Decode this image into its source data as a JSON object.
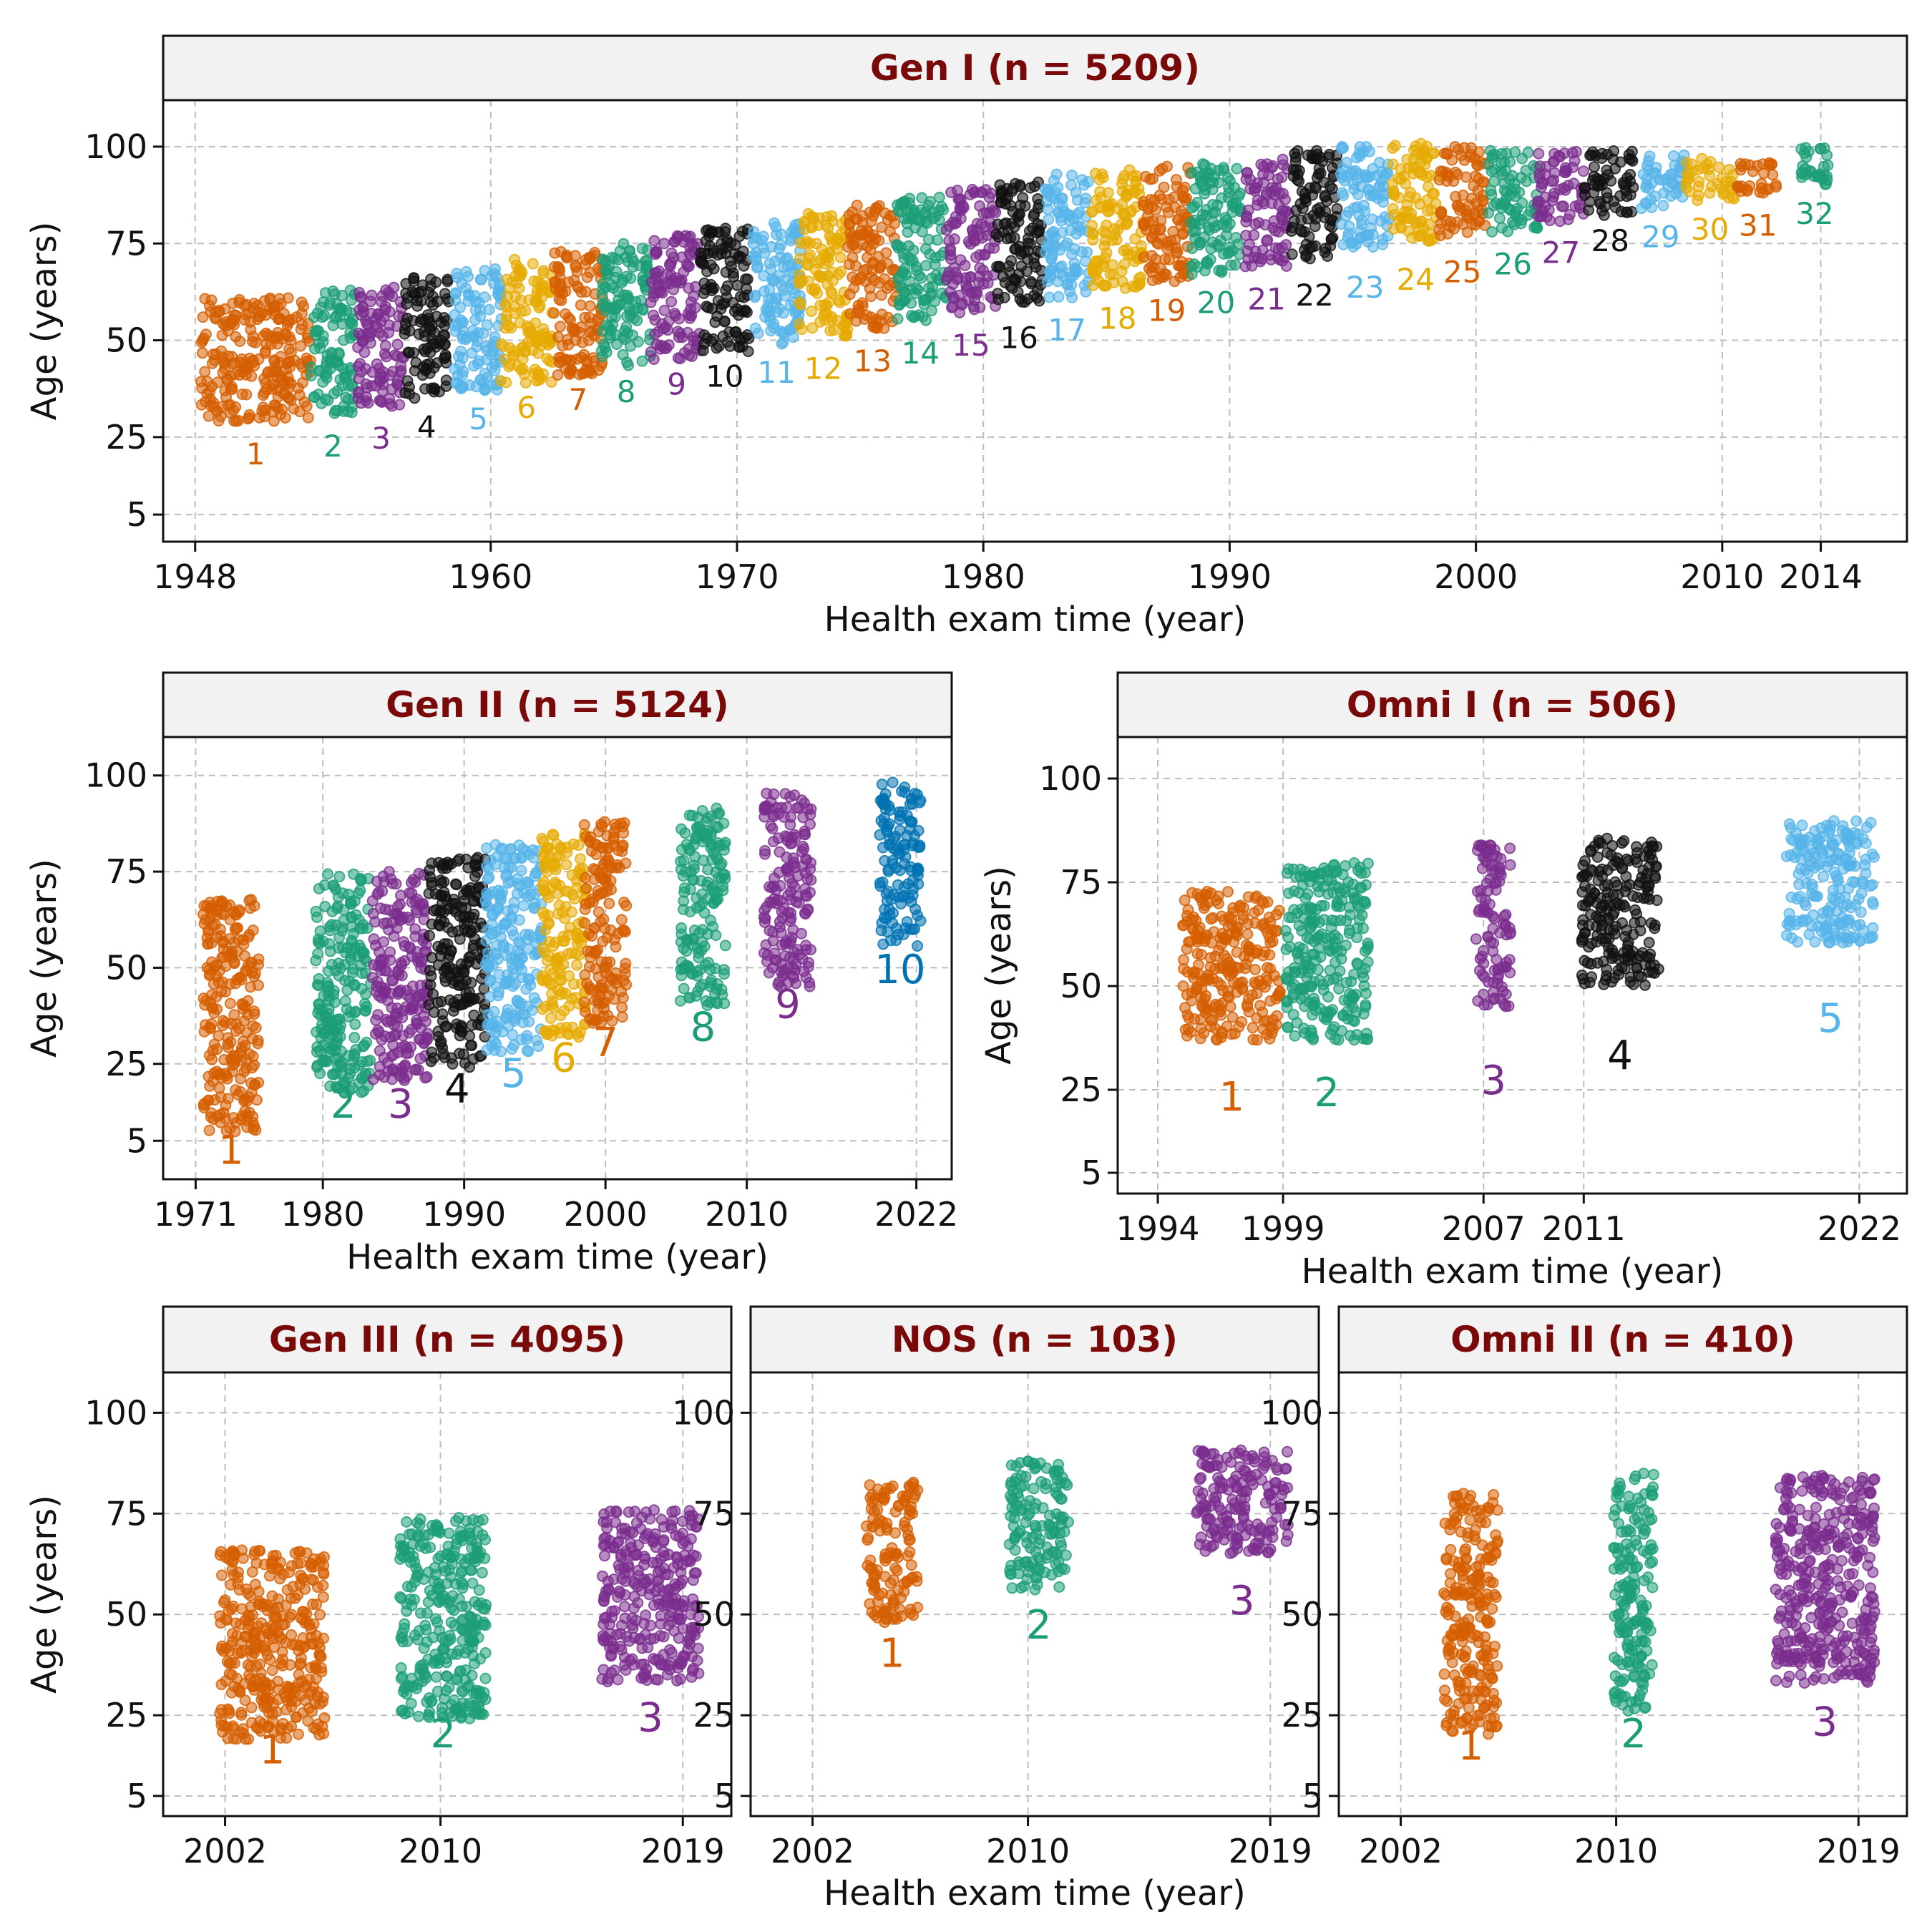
{
  "figure": {
    "xlabel": "Health exam time (year)",
    "ylabel": "Age (years)",
    "palette": {
      "orange": "#D55E00",
      "green": "#1B9E77",
      "purple": "#7B2D8E",
      "black": "#111111",
      "skyblue": "#56B4E9",
      "gold": "#E6AB02",
      "blue": "#0072B2"
    },
    "strip_fill": "#F2F2F2",
    "strip_text_color": "#7A0A0A",
    "grid": "dashed",
    "point_style": "jittered semi-transparent circles"
  },
  "chart_data": [
    {
      "id": "gen1",
      "type": "scatter",
      "title": "Gen I (n = 5209)",
      "xlabel": "Health exam time (year)",
      "ylabel": "Age (years)",
      "xlim": [
        1946.7,
        2017.5
      ],
      "ylim": [
        -2,
        112
      ],
      "xticks": [
        1948,
        1960,
        1970,
        1980,
        1990,
        2000,
        2010,
        2014
      ],
      "yticks": [
        5,
        25,
        50,
        75,
        100
      ],
      "exams": [
        {
          "label": "1",
          "start": 1948.2,
          "end": 1952.7,
          "min": 29,
          "max": 61,
          "color": "orange",
          "label_y": 18
        },
        {
          "label": "2",
          "start": 1952.7,
          "end": 1954.5,
          "min": 31,
          "max": 63,
          "color": "green",
          "label_y": 20
        },
        {
          "label": "3",
          "start": 1954.6,
          "end": 1956.5,
          "min": 33,
          "max": 65,
          "color": "purple",
          "label_y": 22
        },
        {
          "label": "4",
          "start": 1956.5,
          "end": 1958.3,
          "min": 35,
          "max": 67,
          "color": "black",
          "label_y": 25
        },
        {
          "label": "5",
          "start": 1958.5,
          "end": 1960.5,
          "min": 37,
          "max": 69,
          "color": "skyblue",
          "label_y": 27
        },
        {
          "label": "6",
          "start": 1960.4,
          "end": 1962.5,
          "min": 39,
          "max": 71,
          "color": "gold",
          "label_y": 30
        },
        {
          "label": "7",
          "start": 1962.5,
          "end": 1964.6,
          "min": 41,
          "max": 73,
          "color": "orange",
          "label_y": 32
        },
        {
          "label": "8",
          "start": 1964.5,
          "end": 1966.5,
          "min": 43,
          "max": 75,
          "color": "green",
          "label_y": 34
        },
        {
          "label": "9",
          "start": 1966.5,
          "end": 1968.6,
          "min": 45,
          "max": 77,
          "color": "purple",
          "label_y": 36
        },
        {
          "label": "10",
          "start": 1968.5,
          "end": 1970.5,
          "min": 47,
          "max": 79,
          "color": "black",
          "label_y": 38
        },
        {
          "label": "11",
          "start": 1970.6,
          "end": 1972.6,
          "min": 49,
          "max": 81,
          "color": "skyblue",
          "label_y": 39
        },
        {
          "label": "12",
          "start": 1972.5,
          "end": 1974.5,
          "min": 51,
          "max": 83,
          "color": "gold",
          "label_y": 40
        },
        {
          "label": "13",
          "start": 1974.5,
          "end": 1976.5,
          "min": 53,
          "max": 85,
          "color": "orange",
          "label_y": 42
        },
        {
          "label": "14",
          "start": 1976.4,
          "end": 1978.5,
          "min": 55,
          "max": 87,
          "color": "green",
          "label_y": 44
        },
        {
          "label": "15",
          "start": 1978.5,
          "end": 1980.5,
          "min": 57,
          "max": 89,
          "color": "purple",
          "label_y": 46
        },
        {
          "label": "16",
          "start": 1980.5,
          "end": 1982.4,
          "min": 59,
          "max": 91,
          "color": "black",
          "label_y": 48
        },
        {
          "label": "17",
          "start": 1982.5,
          "end": 1984.3,
          "min": 61,
          "max": 93,
          "color": "skyblue",
          "label_y": 50
        },
        {
          "label": "18",
          "start": 1984.4,
          "end": 1986.5,
          "min": 63,
          "max": 94,
          "color": "gold",
          "label_y": 53
        },
        {
          "label": "19",
          "start": 1986.5,
          "end": 1988.4,
          "min": 65,
          "max": 95,
          "color": "orange",
          "label_y": 55
        },
        {
          "label": "20",
          "start": 1988.4,
          "end": 1990.5,
          "min": 67,
          "max": 96,
          "color": "green",
          "label_y": 57
        },
        {
          "label": "21",
          "start": 1990.6,
          "end": 1992.4,
          "min": 69,
          "max": 97,
          "color": "purple",
          "label_y": 58
        },
        {
          "label": "22",
          "start": 1992.5,
          "end": 1994.4,
          "min": 71,
          "max": 99,
          "color": "black",
          "label_y": 59
        },
        {
          "label": "23",
          "start": 1994.5,
          "end": 1996.5,
          "min": 74,
          "max": 100,
          "color": "skyblue",
          "label_y": 61
        },
        {
          "label": "24",
          "start": 1996.6,
          "end": 1998.5,
          "min": 75,
          "max": 101,
          "color": "gold",
          "label_y": 63
        },
        {
          "label": "25",
          "start": 1998.5,
          "end": 2000.4,
          "min": 77,
          "max": 100,
          "color": "orange",
          "label_y": 65
        },
        {
          "label": "26",
          "start": 2000.5,
          "end": 2002.5,
          "min": 78,
          "max": 99,
          "color": "green",
          "label_y": 67
        },
        {
          "label": "27",
          "start": 2002.5,
          "end": 2004.4,
          "min": 80,
          "max": 99,
          "color": "purple",
          "label_y": 70
        },
        {
          "label": "28",
          "start": 2004.4,
          "end": 2006.5,
          "min": 82,
          "max": 99,
          "color": "black",
          "label_y": 73
        },
        {
          "label": "29",
          "start": 2006.5,
          "end": 2008.5,
          "min": 84,
          "max": 98,
          "color": "skyblue",
          "label_y": 74
        },
        {
          "label": "30",
          "start": 2008.5,
          "end": 2010.5,
          "min": 86,
          "max": 97,
          "color": "gold",
          "label_y": 76
        },
        {
          "label": "31",
          "start": 2010.6,
          "end": 2012.3,
          "min": 88,
          "max": 96,
          "color": "orange",
          "label_y": 77
        },
        {
          "label": "32",
          "start": 2013.2,
          "end": 2014.3,
          "min": 90,
          "max": 100,
          "color": "green",
          "label_y": 80
        }
      ]
    },
    {
      "id": "gen2",
      "type": "scatter",
      "title": "Gen II (n = 5124)",
      "xlabel": "Health exam time (year)",
      "ylabel": "Age (years)",
      "xlim": [
        1968.7,
        2024.5
      ],
      "ylim": [
        -5,
        110
      ],
      "xticks": [
        1971,
        1980,
        1990,
        2000,
        2010,
        2022
      ],
      "yticks": [
        5,
        25,
        50,
        75,
        100
      ],
      "exams": [
        {
          "label": "1",
          "start": 1971.5,
          "end": 1975.5,
          "min": 7,
          "max": 68,
          "color": "orange",
          "label_y": -1
        },
        {
          "label": "2",
          "start": 1979.5,
          "end": 1983.4,
          "min": 17,
          "max": 75,
          "color": "green",
          "label_y": 11
        },
        {
          "label": "3",
          "start": 1983.5,
          "end": 1987.5,
          "min": 20,
          "max": 75,
          "color": "purple",
          "label_y": 11
        },
        {
          "label": "4",
          "start": 1987.5,
          "end": 1991.5,
          "min": 24,
          "max": 79,
          "color": "black",
          "label_y": 15
        },
        {
          "label": "5",
          "start": 1991.5,
          "end": 1995.5,
          "min": 28,
          "max": 82,
          "color": "skyblue",
          "label_y": 19
        },
        {
          "label": "6",
          "start": 1995.5,
          "end": 1998.6,
          "min": 32,
          "max": 85,
          "color": "gold",
          "label_y": 23
        },
        {
          "label": "7",
          "start": 1998.5,
          "end": 2001.5,
          "min": 35,
          "max": 88,
          "color": "orange",
          "label_y": 27
        },
        {
          "label": "8",
          "start": 2005.3,
          "end": 2008.5,
          "min": 40,
          "max": 92,
          "color": "green",
          "label_y": 31
        },
        {
          "label": "9",
          "start": 2011.2,
          "end": 2014.6,
          "min": 45,
          "max": 96,
          "color": "purple",
          "label_y": 37
        },
        {
          "label": "10",
          "start": 2019.4,
          "end": 2022.3,
          "min": 55,
          "max": 100,
          "color": "blue",
          "label_y": 46
        }
      ]
    },
    {
      "id": "omni1",
      "type": "scatter",
      "title": "Omni I (n = 506)",
      "xlabel": "Health exam time (year)",
      "ylabel": "Age (years)",
      "xlim": [
        1992.4,
        2023.9
      ],
      "ylim": [
        0,
        110
      ],
      "xticks": [
        1994,
        1999,
        2007,
        2011,
        2022
      ],
      "yticks": [
        5,
        25,
        50,
        75,
        100
      ],
      "exams": [
        {
          "label": "1",
          "start": 1995.0,
          "end": 1998.9,
          "min": 37,
          "max": 73,
          "color": "orange",
          "label_y": 20
        },
        {
          "label": "2",
          "start": 1999.1,
          "end": 2002.4,
          "min": 37,
          "max": 80,
          "color": "green",
          "label_y": 21
        },
        {
          "label": "3",
          "start": 2006.7,
          "end": 2008.1,
          "min": 45,
          "max": 85,
          "color": "purple",
          "label_y": 24
        },
        {
          "label": "4",
          "start": 2010.9,
          "end": 2014.0,
          "min": 50,
          "max": 86,
          "color": "black",
          "label_y": 30
        },
        {
          "label": "5",
          "start": 2019.1,
          "end": 2022.6,
          "min": 60,
          "max": 90,
          "color": "skyblue",
          "label_y": 39
        }
      ]
    },
    {
      "id": "gen3",
      "type": "scatter",
      "title": "Gen III (n = 4095)",
      "xlabel": "Health exam time (year)",
      "ylabel": "Age (years)",
      "xlim": [
        1999.7,
        2020.8
      ],
      "ylim": [
        0,
        110
      ],
      "xticks": [
        2002,
        2010,
        2019
      ],
      "yticks": [
        5,
        25,
        50,
        75,
        100
      ],
      "exams": [
        {
          "label": "1",
          "start": 2001.8,
          "end": 2005.7,
          "min": 19,
          "max": 66,
          "color": "orange",
          "label_y": 13
        },
        {
          "label": "2",
          "start": 2008.5,
          "end": 2011.7,
          "min": 24,
          "max": 74,
          "color": "green",
          "label_y": 17
        },
        {
          "label": "3",
          "start": 2016.0,
          "end": 2019.6,
          "min": 33,
          "max": 76,
          "color": "purple",
          "label_y": 21
        }
      ]
    },
    {
      "id": "nos",
      "type": "scatter",
      "title": "NOS (n = 103)",
      "xlabel": "Health exam time (year)",
      "ylabel": "",
      "xlim": [
        1999.7,
        2020.8
      ],
      "ylim": [
        0,
        110
      ],
      "xticks": [
        2002,
        2010,
        2019
      ],
      "yticks": [
        5,
        25,
        50,
        75,
        100
      ],
      "exams": [
        {
          "label": "1",
          "start": 2004.0,
          "end": 2005.9,
          "min": 48,
          "max": 83,
          "color": "orange",
          "label_y": 37
        },
        {
          "label": "2",
          "start": 2009.3,
          "end": 2011.5,
          "min": 56,
          "max": 88,
          "color": "green",
          "label_y": 44
        },
        {
          "label": "3",
          "start": 2016.2,
          "end": 2019.7,
          "min": 65,
          "max": 91,
          "color": "purple",
          "label_y": 50
        }
      ]
    },
    {
      "id": "omni2",
      "type": "scatter",
      "title": "Omni II (n = 410)",
      "xlabel": "Health exam time (year)",
      "ylabel": "",
      "xlim": [
        1999.7,
        2020.8
      ],
      "ylim": [
        0,
        110
      ],
      "xticks": [
        2002,
        2010,
        2019
      ],
      "yticks": [
        5,
        25,
        50,
        75,
        100
      ],
      "exams": [
        {
          "label": "1",
          "start": 2003.6,
          "end": 2005.6,
          "min": 20,
          "max": 80,
          "color": "orange",
          "label_y": 14
        },
        {
          "label": "2",
          "start": 2009.9,
          "end": 2011.4,
          "min": 26,
          "max": 85,
          "color": "green",
          "label_y": 17
        },
        {
          "label": "3",
          "start": 2015.9,
          "end": 2019.6,
          "min": 33,
          "max": 85,
          "color": "purple",
          "label_y": 20
        }
      ]
    }
  ]
}
